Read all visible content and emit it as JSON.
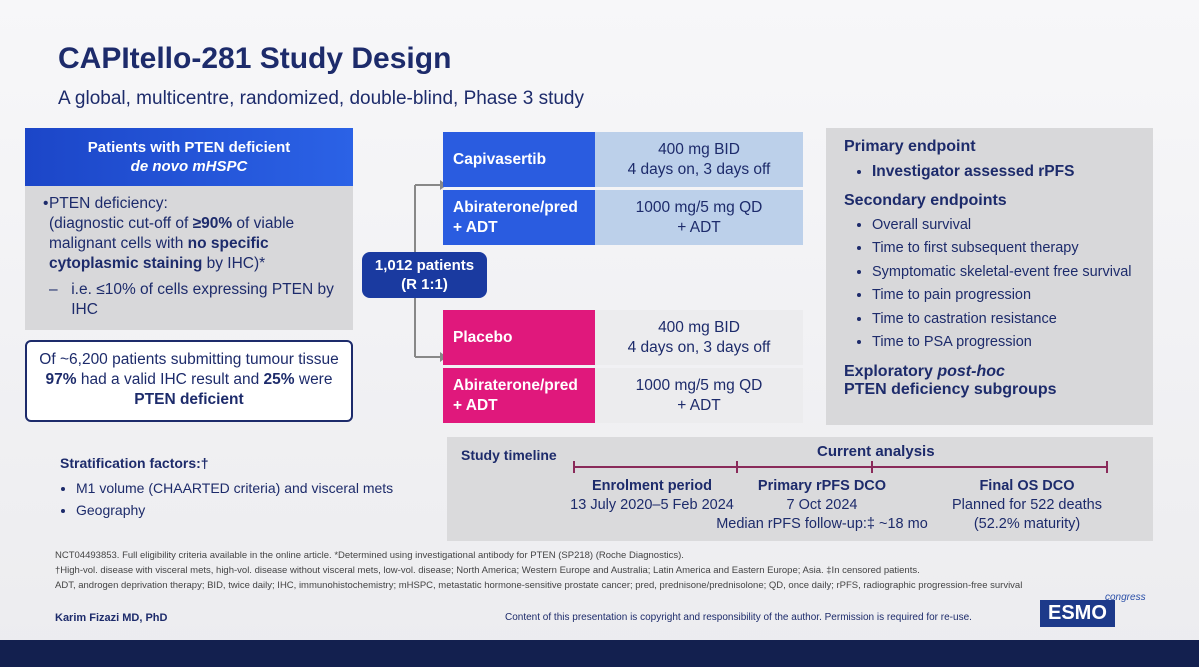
{
  "header": {
    "title": "CAPItello-281 Study Design",
    "subtitle": "A global, multicentre, randomized, double-blind, Phase 3 study"
  },
  "population": {
    "heading": [
      "Patients with PTEN deficient",
      "de novo mHSPC"
    ],
    "criterion": [
      "PTEN deficiency:",
      "(diagnostic cut-off of ",
      "≥90%",
      " of viable malignant cells with ",
      "no specific cytoplasmic staining",
      " by IHC)*"
    ],
    "sub_criterion": "i.e. ≤10% of cells expressing PTEN by IHC"
  },
  "screening": [
    "Of ~6,200 patients submitting tumour tissue ",
    "97%",
    " had a valid IHC result and ",
    "25%",
    " were ",
    "PTEN deficient"
  ],
  "randomization": {
    "patients": "1,012 patients",
    "ratio": "(R 1:1)"
  },
  "arms": [
    {
      "drug": [
        "Capivasertib"
      ],
      "dose": [
        "400 mg BID",
        "4 days on, 3 days off"
      ]
    },
    {
      "drug": [
        "Abiraterone/pred",
        "+ ADT"
      ],
      "dose": [
        "1000 mg/5 mg QD",
        "+ ADT"
      ]
    },
    {
      "drug": [
        "Placebo"
      ],
      "dose": [
        "400 mg BID",
        "4 days on, 3 days off"
      ]
    },
    {
      "drug": [
        "Abiraterone/pred",
        "+ ADT"
      ],
      "dose": [
        "1000 mg/5 mg QD",
        "+ ADT"
      ]
    }
  ],
  "endpoints": {
    "primary_heading": "Primary endpoint",
    "primary": [
      "Investigator assessed rPFS"
    ],
    "secondary_heading": "Secondary endpoints",
    "secondary": [
      "Overall survival",
      "Time to first subsequent therapy",
      "Symptomatic skeletal-event free survival",
      "Time to pain progression",
      "Time to castration resistance",
      "Time to PSA progression"
    ],
    "exploratory": [
      "Exploratory ",
      "post-hoc",
      "PTEN deficiency subgroups"
    ]
  },
  "stratification": {
    "heading": "Stratification factors:†",
    "items": [
      "M1 volume (CHAARTED criteria) and visceral mets",
      "Geography"
    ]
  },
  "timeline": {
    "label": "Study timeline",
    "current": "Current analysis",
    "milestones": [
      {
        "title": "Enrolment period",
        "details": [
          "13 July 2020–5 Feb 2024"
        ]
      },
      {
        "title": "Primary rPFS DCO",
        "details": [
          "7 Oct 2024",
          "Median rPFS follow-up:‡ ~18 mo"
        ]
      },
      {
        "title": "Final OS DCO",
        "details": [
          "Planned for 522 deaths",
          "(52.2% maturity)"
        ]
      }
    ]
  },
  "footnotes": [
    "NCT04493853. Full eligibility criteria available in the online article. *Determined using investigational antibody for PTEN (SP218) (Roche Diagnostics).",
    "†High-vol. disease with visceral mets, high-vol. disease without visceral mets, low-vol. disease; North America; Western Europe and Australia; Latin America and Eastern Europe; Asia. ‡In censored patients.",
    "ADT, androgen deprivation therapy; BID, twice daily; IHC, immunohistochemistry; mHSPC, metastatic hormone-sensitive prostate cancer; pred, prednisone/prednisolone; QD, once daily; rPFS, radiographic progression-free survival"
  ],
  "footer": {
    "presenter": "Karim Fizazi MD, PhD",
    "copyright": "Content of this presentation is copyright and responsibility of the author. Permission is required for re-use.",
    "logo": "ESMO",
    "logo_sub": "congress"
  }
}
